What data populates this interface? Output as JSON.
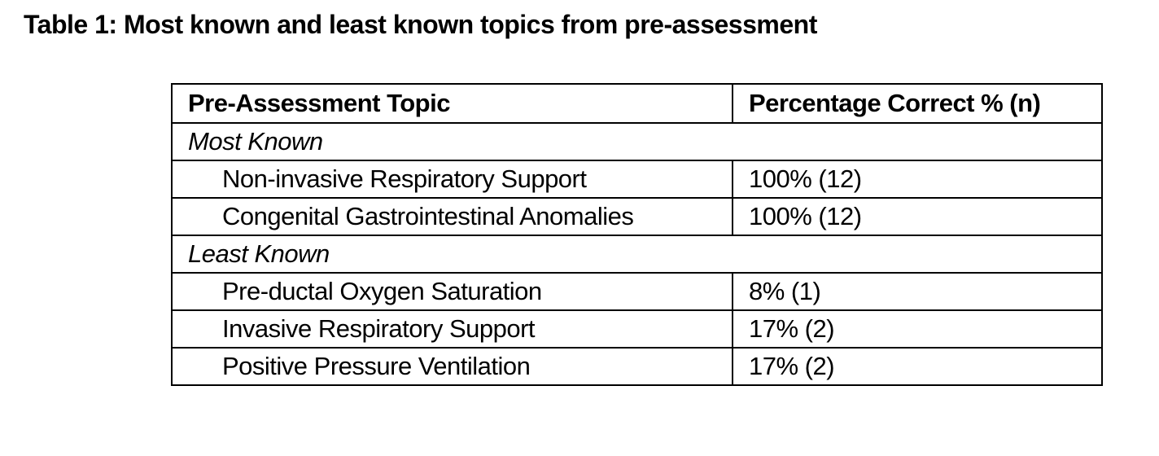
{
  "caption": "Table 1: Most known and least known topics from pre-assessment",
  "table": {
    "headers": [
      "Pre-Assessment Topic",
      "Percentage Correct % (n)"
    ],
    "groups": [
      {
        "label": "Most Known",
        "rows": [
          {
            "topic": "Non-invasive Respiratory Support",
            "value": "100% (12)"
          },
          {
            "topic": "Congenital Gastrointestinal Anomalies",
            "value": "100% (12)"
          }
        ]
      },
      {
        "label": "Least Known",
        "rows": [
          {
            "topic": "Pre-ductal Oxygen Saturation",
            "value": "8% (1)"
          },
          {
            "topic": "Invasive Respiratory Support",
            "value": "17% (2)"
          },
          {
            "topic": "Positive Pressure Ventilation",
            "value": "17% (2)"
          }
        ]
      }
    ]
  }
}
